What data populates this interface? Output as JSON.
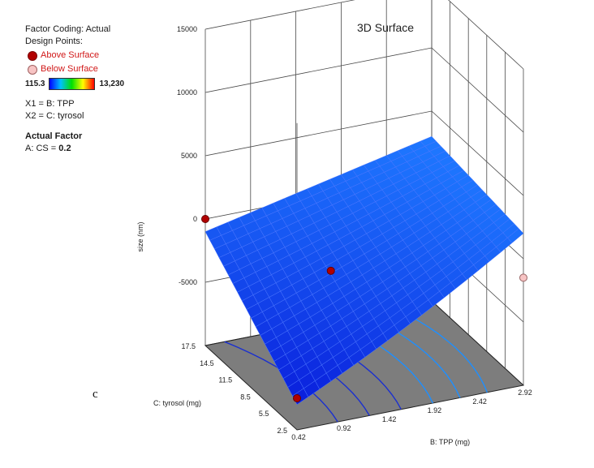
{
  "info": {
    "factor_coding": "Factor Coding: Actual",
    "design_points_heading": "Design Points:",
    "above_label": "Above Surface",
    "below_label": "Below Surface",
    "range_min": "115.3",
    "range_max": "13,230",
    "x1_def": "X1 = B: TPP",
    "x2_def": "X2 = C: tyrosol",
    "actual_factor_heading": "Actual Factor",
    "actual_factor_prefix": "A: CS = ",
    "actual_factor_value": "0.2"
  },
  "panel_letter": "c",
  "colors": {
    "above": "#b10000",
    "below": "#f7c4c4",
    "surface": "#1f3cf0",
    "grid_line": "#1f3cf0",
    "floor": "#7d7d7d"
  },
  "chart_data": {
    "type": "surface",
    "title": "3D Surface",
    "xlabel": "B: TPP (mg)",
    "ylabel": "C: tyrosol (mg)",
    "zlabel": "size (nm)",
    "x_ticks": [
      "0.42",
      "0.92",
      "1.42",
      "1.92",
      "2.42",
      "2.92"
    ],
    "y_ticks": [
      "2.5",
      "5.5",
      "8.5",
      "11.5",
      "14.5",
      "17.5"
    ],
    "z_ticks": [
      "-5000",
      "0",
      "5000",
      "10000",
      "15000"
    ],
    "xlim": [
      0.42,
      2.92
    ],
    "ylim": [
      2.5,
      17.5
    ],
    "zlim": [
      -10000,
      15000
    ],
    "surface_corners": {
      "x_min_y_min": -8000,
      "x_max_y_min": 500,
      "x_min_y_max": -1000,
      "x_max_y_max": 3000
    },
    "design_points": [
      {
        "type": "above",
        "x": 0.42,
        "y": 17.5,
        "z": 0
      },
      {
        "type": "above",
        "x": 1.3,
        "y": 10.0,
        "z": -2000
      },
      {
        "type": "above",
        "x": 0.42,
        "y": 2.5,
        "z": -7500
      },
      {
        "type": "below",
        "x": 2.92,
        "y": 2.5,
        "z": -1500
      }
    ]
  }
}
